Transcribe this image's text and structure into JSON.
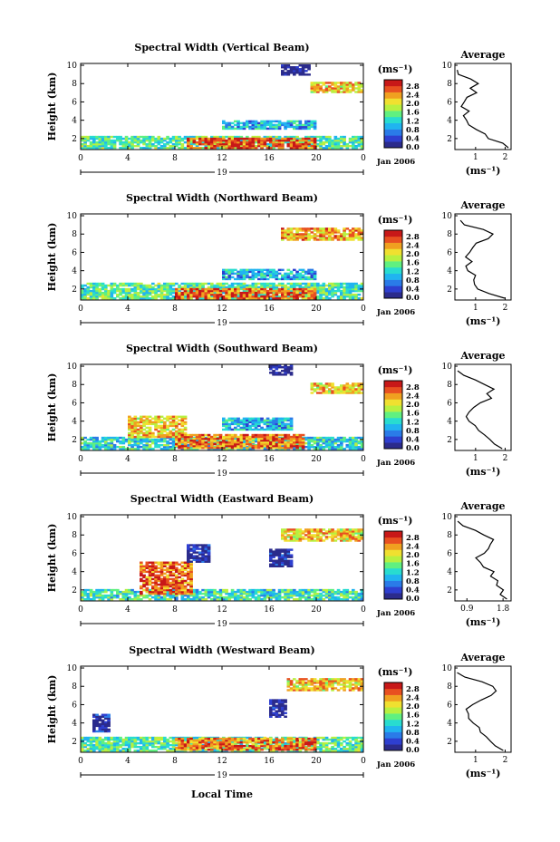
{
  "figure": {
    "x_axis_title": "Local Time",
    "date_label": "Jan 2006",
    "day_label": "19",
    "y_axis_title": "Height (km)",
    "colorbar_unit": "(ms⁻¹)",
    "average_title": "Average",
    "average_unit": "(ms⁻¹)"
  },
  "colorbar": {
    "ticks": [
      "0.0",
      "0.4",
      "0.8",
      "1.2",
      "1.6",
      "2.0",
      "2.4",
      "2.8"
    ],
    "colors": [
      "#2b2b8c",
      "#2e3fd0",
      "#2a7be8",
      "#20b4f0",
      "#28dcd0",
      "#60f080",
      "#b8f040",
      "#f0e030",
      "#f0a020",
      "#e85020",
      "#c81818"
    ]
  },
  "chart_data": [
    {
      "type": "heatmap",
      "title": "Spectral Width (Vertical Beam)",
      "xlabel": "Local Time",
      "ylabel": "Height (km)",
      "x_ticks": [
        "0",
        "4",
        "8",
        "12",
        "16",
        "20",
        "0"
      ],
      "y_ticks": [
        "2",
        "4",
        "6",
        "8",
        "10"
      ],
      "xlim": [
        0,
        24
      ],
      "ylim": [
        0.8,
        10.2
      ],
      "value_range": [
        0,
        2.8
      ],
      "profile": {
        "title": "Average",
        "xlabel": "(ms⁻¹)",
        "x_ticks": [
          "1",
          "2"
        ],
        "xlim": [
          0.3,
          2.2
        ],
        "heights": [
          1,
          1.5,
          2,
          2.5,
          3,
          3.5,
          4,
          4.5,
          5,
          5.5,
          6,
          6.5,
          7,
          7.5,
          8,
          8.5,
          9,
          9.5
        ],
        "values": [
          2.1,
          1.9,
          1.4,
          1.3,
          1.0,
          0.8,
          0.7,
          0.6,
          0.75,
          0.5,
          0.6,
          0.7,
          1.0,
          0.8,
          1.1,
          0.8,
          0.4,
          0.35
        ]
      }
    },
    {
      "type": "heatmap",
      "title": "Spectral Width (Northward Beam)",
      "xlabel": "Local Time",
      "ylabel": "Height (km)",
      "x_ticks": [
        "0",
        "4",
        "8",
        "12",
        "16",
        "20",
        "0"
      ],
      "y_ticks": [
        "2",
        "4",
        "6",
        "8",
        "10"
      ],
      "xlim": [
        0,
        24
      ],
      "ylim": [
        0.8,
        10.2
      ],
      "value_range": [
        0,
        2.8
      ],
      "profile": {
        "title": "Average",
        "xlabel": "(ms⁻¹)",
        "x_ticks": [
          "1",
          "2"
        ],
        "xlim": [
          0.3,
          2.2
        ],
        "heights": [
          1,
          1.5,
          2,
          2.5,
          3,
          3.5,
          4,
          4.5,
          5,
          5.5,
          6,
          6.5,
          7,
          7.5,
          8,
          8.5,
          9,
          9.5
        ],
        "values": [
          2.0,
          1.5,
          1.1,
          1.0,
          0.9,
          1.0,
          0.7,
          0.7,
          0.9,
          0.7,
          0.8,
          0.9,
          1.0,
          1.4,
          1.6,
          1.3,
          0.6,
          0.5
        ]
      }
    },
    {
      "type": "heatmap",
      "title": "Spectral Width (Southward Beam)",
      "xlabel": "Local Time",
      "ylabel": "Height (km)",
      "x_ticks": [
        "0",
        "4",
        "8",
        "12",
        "16",
        "20",
        "0"
      ],
      "y_ticks": [
        "2",
        "4",
        "6",
        "8",
        "10"
      ],
      "xlim": [
        0,
        24
      ],
      "ylim": [
        0.8,
        10.2
      ],
      "value_range": [
        0,
        2.8
      ],
      "profile": {
        "title": "Average",
        "xlabel": "(ms⁻¹)",
        "x_ticks": [
          "1",
          "2"
        ],
        "xlim": [
          0.3,
          2.2
        ],
        "heights": [
          1,
          1.5,
          2,
          2.5,
          3,
          3.5,
          4,
          4.5,
          5,
          5.5,
          6,
          6.5,
          7,
          7.5,
          8,
          8.5,
          9,
          9.5
        ],
        "values": [
          1.9,
          1.6,
          1.5,
          1.3,
          1.1,
          1.0,
          0.8,
          0.7,
          0.8,
          0.9,
          1.2,
          1.5,
          1.4,
          1.6,
          1.3,
          1.0,
          0.6,
          0.4
        ]
      }
    },
    {
      "type": "heatmap",
      "title": "Spectral Width (Eastward Beam)",
      "xlabel": "Local Time",
      "ylabel": "Height (km)",
      "x_ticks": [
        "0",
        "4",
        "8",
        "12",
        "16",
        "20",
        "0"
      ],
      "y_ticks": [
        "2",
        "4",
        "6",
        "8",
        "10"
      ],
      "xlim": [
        0,
        24
      ],
      "ylim": [
        0.8,
        10.2
      ],
      "value_range": [
        0,
        2.8
      ],
      "profile": {
        "title": "Average",
        "xlabel": "(ms⁻¹)",
        "x_ticks": [
          "0.9",
          "1.8"
        ],
        "xlim": [
          0.6,
          2.0
        ],
        "heights": [
          1,
          1.5,
          2,
          2.5,
          3,
          3.5,
          4,
          4.5,
          5,
          5.5,
          6,
          6.5,
          7,
          7.5,
          8,
          8.5,
          9,
          9.5
        ],
        "values": [
          1.9,
          1.7,
          1.8,
          1.6,
          1.7,
          1.5,
          1.6,
          1.3,
          1.2,
          1.1,
          1.3,
          1.4,
          1.5,
          1.6,
          1.3,
          1.1,
          0.8,
          0.7
        ]
      }
    },
    {
      "type": "heatmap",
      "title": "Spectral Width (Westward Beam)",
      "xlabel": "Local Time",
      "ylabel": "Height (km)",
      "x_ticks": [
        "0",
        "4",
        "8",
        "12",
        "16",
        "20",
        "0"
      ],
      "y_ticks": [
        "2",
        "4",
        "6",
        "8",
        "10"
      ],
      "xlim": [
        0,
        24
      ],
      "ylim": [
        0.8,
        10.2
      ],
      "value_range": [
        0,
        2.8
      ],
      "profile": {
        "title": "Average",
        "xlabel": "(ms⁻¹)",
        "x_ticks": [
          "1",
          "2"
        ],
        "xlim": [
          0.3,
          2.2
        ],
        "heights": [
          1,
          1.5,
          2,
          2.5,
          3,
          3.5,
          4,
          4.5,
          5,
          5.5,
          6,
          6.5,
          7,
          7.5,
          8,
          8.5,
          9,
          9.5
        ],
        "values": [
          1.9,
          1.7,
          1.5,
          1.4,
          1.2,
          1.1,
          0.9,
          0.8,
          0.8,
          0.7,
          0.9,
          1.2,
          1.5,
          1.7,
          1.6,
          1.2,
          0.6,
          0.4
        ]
      }
    }
  ]
}
